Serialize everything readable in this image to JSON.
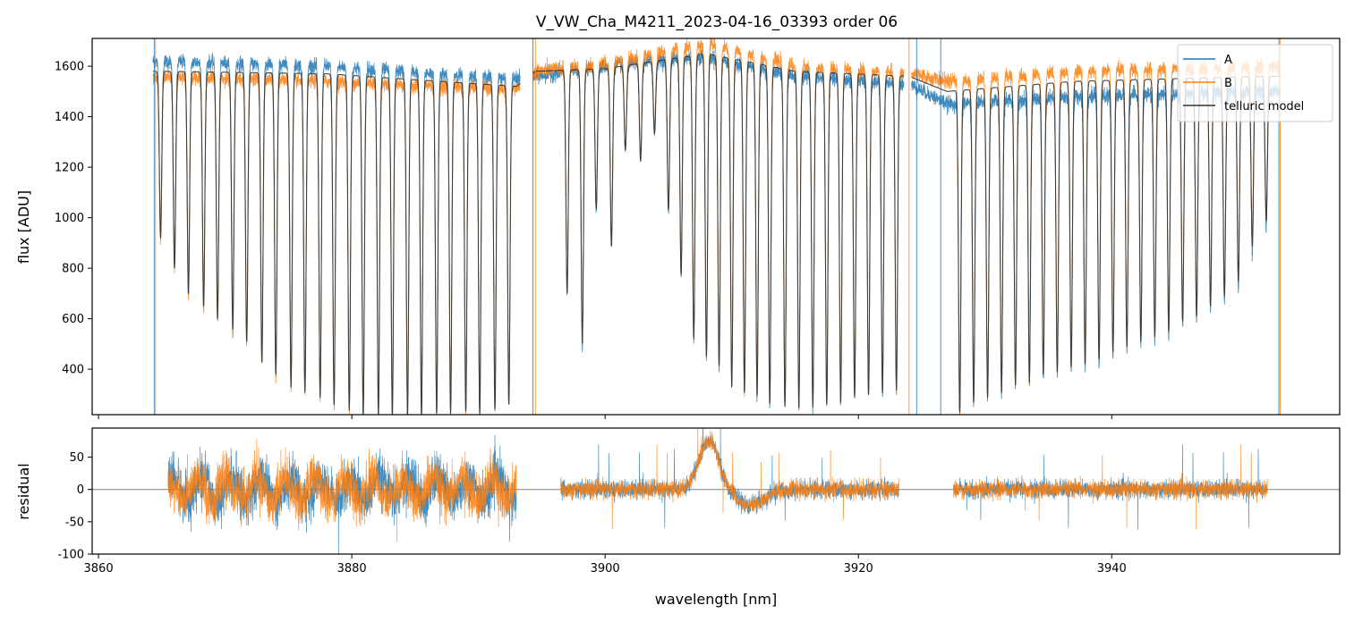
{
  "title": "V_VW_Cha_M4211_2023-04-16_03393  order 06",
  "colors": {
    "A": "#1f77b4",
    "B": "#ff7f0e",
    "telluric": "#333333",
    "zero_line": "#808080"
  },
  "chart_data": [
    {
      "type": "line",
      "panel": "spectrum",
      "title": "V_VW_Cha_M4211_2023-04-16_03393  order 06",
      "xlabel": "",
      "ylabel": "flux [ADU]",
      "xlim": [
        3859.5,
        3958
      ],
      "ylim": [
        220,
        1710
      ],
      "yticks": [
        400,
        600,
        800,
        1000,
        1200,
        1400,
        1600
      ],
      "grid": false,
      "legend": "top-right",
      "legend_entries": [
        "A",
        "B",
        "telluric model"
      ],
      "line_spacing_nm": 1.15,
      "series": [
        {
          "name": "A",
          "continuum": [
            [
              3865,
              1620
            ],
            [
              3878,
              1600
            ],
            [
              3893,
              1550
            ],
            [
              3894.5,
              1560
            ],
            [
              3900,
              1600
            ],
            [
              3908,
              1640
            ],
            [
              3915,
              1560
            ],
            [
              3924,
              1530
            ],
            [
              3927,
              1450
            ],
            [
              3937,
              1480
            ],
            [
              3952,
              1500
            ]
          ]
        },
        {
          "name": "B",
          "continuum": [
            [
              3865,
              1560
            ],
            [
              3878,
              1540
            ],
            [
              3893,
              1510
            ],
            [
              3894.5,
              1580
            ],
            [
              3900,
              1610
            ],
            [
              3908,
              1690
            ],
            [
              3915,
              1600
            ],
            [
              3924,
              1570
            ],
            [
              3927,
              1540
            ],
            [
              3937,
              1580
            ],
            [
              3952,
              1600
            ]
          ]
        },
        {
          "name": "telluric model",
          "continuum": [
            [
              3865,
              1580
            ],
            [
              3878,
              1570
            ],
            [
              3893,
              1520
            ],
            [
              3894.5,
              1580
            ],
            [
              3900,
              1590
            ],
            [
              3908,
              1650
            ],
            [
              3915,
              1580
            ],
            [
              3924,
              1560
            ],
            [
              3927,
              1500
            ],
            [
              3937,
              1540
            ],
            [
              3952,
              1560
            ]
          ]
        }
      ],
      "absorption_lines": [
        [
          3864.9,
          920
        ],
        [
          3866.0,
          800
        ],
        [
          3867.1,
          700
        ],
        [
          3868.3,
          650
        ],
        [
          3869.4,
          600
        ],
        [
          3870.6,
          560
        ],
        [
          3871.7,
          510
        ],
        [
          3872.9,
          430
        ],
        [
          3874.0,
          380
        ],
        [
          3875.2,
          330
        ],
        [
          3876.3,
          310
        ],
        [
          3877.5,
          290
        ],
        [
          3878.6,
          260
        ],
        [
          3879.8,
          240
        ],
        [
          3880.9,
          220
        ],
        [
          3882.1,
          220
        ],
        [
          3883.2,
          220
        ],
        [
          3884.4,
          220
        ],
        [
          3885.5,
          220
        ],
        [
          3886.7,
          230
        ],
        [
          3887.8,
          230
        ],
        [
          3889.0,
          240
        ],
        [
          3890.1,
          230
        ],
        [
          3891.3,
          250
        ],
        [
          3892.4,
          270
        ],
        [
          3897.0,
          700
        ],
        [
          3898.2,
          500
        ],
        [
          3899.3,
          1030
        ],
        [
          3900.5,
          880
        ],
        [
          3901.6,
          1250
        ],
        [
          3902.8,
          1200
        ],
        [
          3903.9,
          1300
        ],
        [
          3905.0,
          1000
        ],
        [
          3906.0,
          750
        ],
        [
          3907.0,
          500
        ],
        [
          3908.0,
          430
        ],
        [
          3909.0,
          400
        ],
        [
          3910.0,
          320
        ],
        [
          3911.0,
          300
        ],
        [
          3912.0,
          290
        ],
        [
          3913.0,
          260
        ],
        [
          3914.2,
          250
        ],
        [
          3915.3,
          250
        ],
        [
          3916.4,
          250
        ],
        [
          3917.5,
          260
        ],
        [
          3918.6,
          270
        ],
        [
          3919.7,
          290
        ],
        [
          3920.8,
          300
        ],
        [
          3921.9,
          310
        ],
        [
          3923.0,
          320
        ],
        [
          3928.0,
          240
        ],
        [
          3929.1,
          280
        ],
        [
          3930.2,
          300
        ],
        [
          3931.3,
          320
        ],
        [
          3932.4,
          350
        ],
        [
          3933.5,
          360
        ],
        [
          3934.6,
          390
        ],
        [
          3935.7,
          400
        ],
        [
          3936.8,
          420
        ],
        [
          3937.9,
          430
        ],
        [
          3939.0,
          450
        ],
        [
          3940.1,
          480
        ],
        [
          3941.2,
          500
        ],
        [
          3942.3,
          520
        ],
        [
          3943.4,
          540
        ],
        [
          3944.5,
          560
        ],
        [
          3945.6,
          600
        ],
        [
          3946.7,
          620
        ],
        [
          3947.8,
          660
        ],
        [
          3948.9,
          700
        ],
        [
          3950.0,
          760
        ],
        [
          3951.1,
          900
        ],
        [
          3952.2,
          1000
        ]
      ],
      "data_segments": [
        [
          3864.3,
          3893.3
        ],
        [
          3894.3,
          3923.6
        ],
        [
          3924.2,
          3953.3
        ]
      ]
    },
    {
      "type": "line",
      "panel": "residual",
      "xlabel": "wavelength [nm]",
      "ylabel": "residual",
      "xlim": [
        3859.5,
        3958
      ],
      "ylim": [
        -100,
        95
      ],
      "xticks": [
        3860,
        3880,
        3900,
        3920,
        3940
      ],
      "yticks": [
        -100,
        -50,
        0,
        50
      ],
      "reference_line": 0,
      "grid": false,
      "series": [
        {
          "name": "A",
          "noise_amplitude": [
            [
              3866,
              40
            ],
            [
              3893,
              40
            ],
            [
              3897,
              15
            ],
            [
              3923,
              15
            ],
            [
              3928,
              15
            ],
            [
              3952,
              15
            ]
          ]
        },
        {
          "name": "B",
          "noise_amplitude": [
            [
              3866,
              40
            ],
            [
              3893,
              40
            ],
            [
              3897,
              15
            ],
            [
              3923,
              15
            ],
            [
              3928,
              15
            ],
            [
              3952,
              15
            ]
          ]
        }
      ],
      "bump": {
        "center": 3908.2,
        "height": 75,
        "width": 1.1
      },
      "dip": {
        "center": 3911.5,
        "depth": -25,
        "width": 1.5
      },
      "data_segments": [
        [
          3865.5,
          3893.0
        ],
        [
          3896.5,
          3923.2
        ],
        [
          3927.5,
          3952.3
        ]
      ]
    }
  ]
}
